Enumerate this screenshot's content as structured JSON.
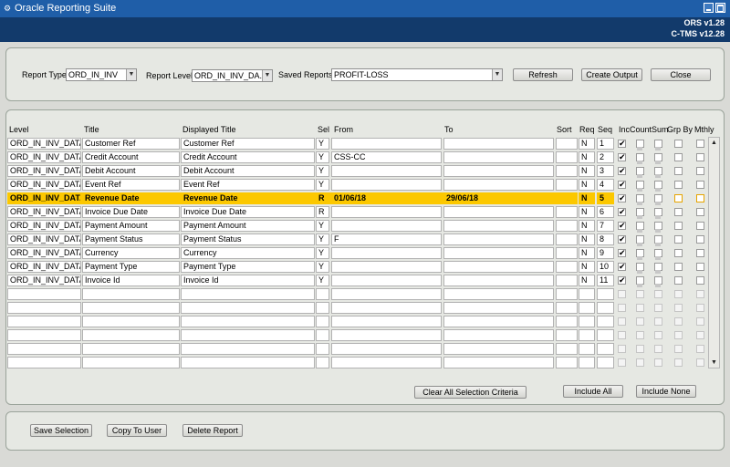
{
  "window": {
    "title": "Oracle Reporting Suite"
  },
  "header": {
    "version1": "ORS v1.28",
    "version2": "C-TMS v12.28"
  },
  "top": {
    "report_type_label": "Report Type",
    "report_type_value": "ORD_IN_INV",
    "report_level_label": "Report Level",
    "report_level_value": "ORD_IN_INV_DA...",
    "saved_reports_label": "Saved Reports",
    "saved_reports_value": "PROFIT-LOSS",
    "refresh": "Refresh",
    "create_output": "Create Output",
    "close": "Close"
  },
  "columns": {
    "level": "Level",
    "title": "Title",
    "displayed_title": "Displayed Title",
    "sel": "Sel",
    "from": "From",
    "to": "To",
    "sort": "Sort",
    "req": "Req",
    "seq": "Seq",
    "inc": "Inc",
    "count": "Count",
    "sum": "Sum",
    "grp_by": "Grp By",
    "mthly": "Mthly"
  },
  "rows": [
    {
      "level": "ORD_IN_INV_DATA",
      "title": "Customer Ref",
      "displayed": "Customer Ref",
      "sel": "Y",
      "from": "",
      "to": "",
      "sort": "",
      "req": "N",
      "seq": "1",
      "inc": true
    },
    {
      "level": "ORD_IN_INV_DATA",
      "title": "Credit Account",
      "displayed": "Credit Account",
      "sel": "Y",
      "from": "CSS-CC",
      "to": "",
      "sort": "",
      "req": "N",
      "seq": "2",
      "inc": true
    },
    {
      "level": "ORD_IN_INV_DATA",
      "title": "Debit Account",
      "displayed": "Debit Account",
      "sel": "Y",
      "from": "",
      "to": "",
      "sort": "",
      "req": "N",
      "seq": "3",
      "inc": true
    },
    {
      "level": "ORD_IN_INV_DATA",
      "title": "Event Ref",
      "displayed": "Event Ref",
      "sel": "Y",
      "from": "",
      "to": "",
      "sort": "",
      "req": "N",
      "seq": "4",
      "inc": true
    },
    {
      "level": "ORD_IN_INV_DATA",
      "title": "Revenue Date",
      "displayed": "Revenue Date",
      "sel": "R",
      "from": "01/06/18",
      "to": "29/06/18",
      "sort": "",
      "req": "N",
      "seq": "5",
      "inc": true
    },
    {
      "level": "ORD_IN_INV_DATA",
      "title": "Invoice Due Date",
      "displayed": "Invoice Due Date",
      "sel": "R",
      "from": "",
      "to": "",
      "sort": "",
      "req": "N",
      "seq": "6",
      "inc": true
    },
    {
      "level": "ORD_IN_INV_DATA",
      "title": "Payment Amount",
      "displayed": "Payment Amount",
      "sel": "Y",
      "from": "",
      "to": "",
      "sort": "",
      "req": "N",
      "seq": "7",
      "inc": true
    },
    {
      "level": "ORD_IN_INV_DATA",
      "title": "Payment Status",
      "displayed": "Payment Status",
      "sel": "Y",
      "from": "F",
      "to": "",
      "sort": "",
      "req": "N",
      "seq": "8",
      "inc": true
    },
    {
      "level": "ORD_IN_INV_DATA",
      "title": "Currency",
      "displayed": "Currency",
      "sel": "Y",
      "from": "",
      "to": "",
      "sort": "",
      "req": "N",
      "seq": "9",
      "inc": true
    },
    {
      "level": "ORD_IN_INV_DATA",
      "title": "Payment Type",
      "displayed": "Payment Type",
      "sel": "Y",
      "from": "",
      "to": "",
      "sort": "",
      "req": "N",
      "seq": "10",
      "inc": true
    },
    {
      "level": "ORD_IN_INV_DATA",
      "title": "Invoice Id",
      "displayed": "Invoice Id",
      "sel": "Y",
      "from": "",
      "to": "",
      "sort": "",
      "req": "N",
      "seq": "11",
      "inc": true
    }
  ],
  "highlight_row_index": 4,
  "empty_row_count": 6,
  "grid_actions": {
    "clear_all": "Clear All Selection Criteria",
    "include_all": "Include All",
    "include_none": "Include None"
  },
  "bottom": {
    "save_selection": "Save Selection",
    "copy_to_user": "Copy To User",
    "delete_report": "Delete Report"
  },
  "colors": {
    "titlebar": "#1f5ea8",
    "header": "#123a6b",
    "highlight": "#fcc800"
  }
}
